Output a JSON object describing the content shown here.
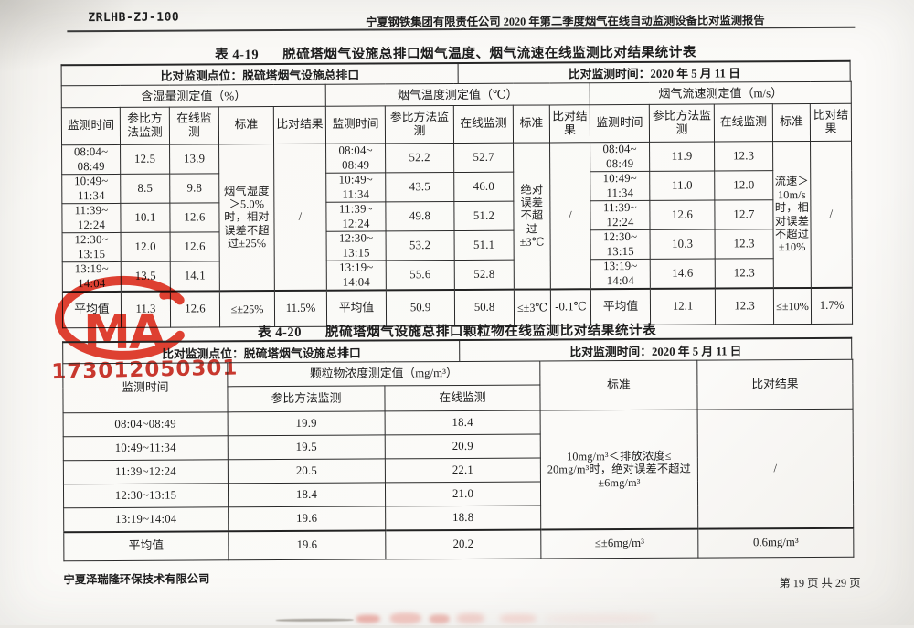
{
  "page": {
    "doc_code": "ZRLHB-ZJ-100",
    "report_title": "宁夏钢铁集团有限责任公司 2020 年第二季度烟气在线自动监测设备比对监测报告",
    "footer_company": "宁夏泽瑞隆环保技术有限公司",
    "footer_page": "第 19 页 共 29 页",
    "stamp": {
      "mark": "CMA",
      "number": "173012050301",
      "color": "#dd3526"
    }
  },
  "table19": {
    "caption": {
      "no": "表 4-19",
      "title": "脱硫塔烟气设施总排口烟气温度、烟气流速在线监测比对结果统计表"
    },
    "site": "比对监测点位：脱硫塔烟气设施总排口",
    "datetime": "比对监测时间：2020 年 5 月 11 日",
    "sub_headers": [
      "监测时间",
      "参比方法监测",
      "在线监测",
      "标准",
      "比对结果"
    ],
    "groups": [
      {
        "title": "含湿量测定值（%）",
        "standard": "烟气湿度＞5.0%时，相对误差不超过±25%",
        "result": "/",
        "rows": [
          {
            "time": "08:04~\n08:49",
            "ref": "12.5",
            "online": "13.9"
          },
          {
            "time": "10:49~\n11:34",
            "ref": "8.5",
            "online": "9.8"
          },
          {
            "time": "11:39~\n12:24",
            "ref": "10.1",
            "online": "12.6"
          },
          {
            "time": "12:30~\n13:15",
            "ref": "12.0",
            "online": "12.6"
          },
          {
            "time": "13:19~\n14:04",
            "ref": "13.5",
            "online": "14.1"
          }
        ],
        "avg": {
          "label": "平均值",
          "ref": "11.3",
          "online": "12.6",
          "standard": "≤±25%",
          "result": "11.5%"
        }
      },
      {
        "title": "烟气温度测定值（℃）",
        "standard": "绝对误差不超过±3℃",
        "result": "/",
        "rows": [
          {
            "time": "08:04~\n08:49",
            "ref": "52.2",
            "online": "52.7"
          },
          {
            "time": "10:49~\n11:34",
            "ref": "43.5",
            "online": "46.0"
          },
          {
            "time": "11:39~\n12:24",
            "ref": "49.8",
            "online": "51.2"
          },
          {
            "time": "12:30~\n13:15",
            "ref": "53.2",
            "online": "51.1"
          },
          {
            "time": "13:19~\n14:04",
            "ref": "55.6",
            "online": "52.8"
          }
        ],
        "avg": {
          "label": "平均值",
          "ref": "50.9",
          "online": "50.8",
          "standard": "≤±3℃",
          "result": "-0.1℃"
        }
      },
      {
        "title": "烟气流速测定值（m/s）",
        "standard": "流速＞10m/s时，相对误差不超过±10%",
        "result": "/",
        "rows": [
          {
            "time": "08:04~\n08:49",
            "ref": "11.9",
            "online": "12.3"
          },
          {
            "time": "10:49~\n11:34",
            "ref": "11.0",
            "online": "12.0"
          },
          {
            "time": "11:39~\n12:24",
            "ref": "12.6",
            "online": "12.7"
          },
          {
            "time": "12:30~\n13:15",
            "ref": "10.3",
            "online": "12.3"
          },
          {
            "time": "13:19~\n14:04",
            "ref": "14.6",
            "online": "12.3"
          }
        ],
        "avg": {
          "label": "平均值",
          "ref": "12.1",
          "online": "12.3",
          "standard": "≤±10%",
          "result": "1.7%"
        }
      }
    ]
  },
  "table20": {
    "caption": {
      "no": "表 4-20",
      "title": "脱硫塔烟气设施总排口颗粒物在线监测比对结果统计表"
    },
    "site": "比对监测点位：脱硫塔烟气设施总排口",
    "datetime": "比对监测时间：2020 年 5 月 11 日",
    "time_header": "监测时间",
    "group_title": "颗粒物浓度测定值（mg/m³）",
    "sub_headers": [
      "参比方法监测",
      "在线监测"
    ],
    "std_header": "标准",
    "result_header": "比对结果",
    "standard": "10mg/m³＜排放浓度≤\n20mg/m³时，绝对误差不超过\n±6mg/m³",
    "result": "/",
    "rows": [
      {
        "time": "08:04~08:49",
        "ref": "19.9",
        "online": "18.4"
      },
      {
        "time": "10:49~11:34",
        "ref": "19.5",
        "online": "20.9"
      },
      {
        "time": "11:39~12:24",
        "ref": "20.5",
        "online": "22.1"
      },
      {
        "time": "12:30~13:15",
        "ref": "18.4",
        "online": "21.0"
      },
      {
        "time": "13:19~14:04",
        "ref": "19.6",
        "online": "18.8"
      }
    ],
    "avg": {
      "label": "平均值",
      "ref": "19.6",
      "online": "20.2",
      "standard": "≤±6mg/m³",
      "result": "0.6mg/m³"
    }
  }
}
